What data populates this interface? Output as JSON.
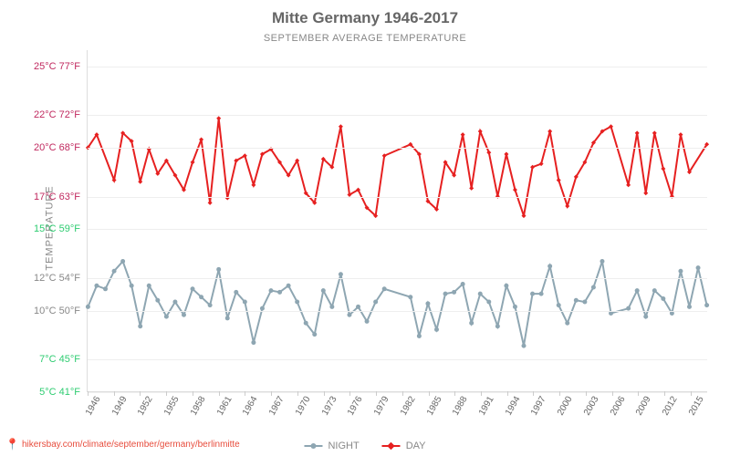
{
  "title": "Mitte Germany 1946-2017",
  "title_fontsize": 17,
  "subtitle": "SEPTEMBER AVERAGE TEMPERATURE",
  "y_axis_label": "TEMPERATURE",
  "plot": {
    "background_color": "#ffffff",
    "grid_color": "#eeeeee",
    "axis_color": "#dddddd",
    "ylim_c": [
      5,
      26
    ],
    "y_ticks": [
      {
        "c": 5,
        "f": 41,
        "color": "#2ecc71"
      },
      {
        "c": 7,
        "f": 45,
        "color": "#2ecc71"
      },
      {
        "c": 10,
        "f": 50,
        "color": "#888888"
      },
      {
        "c": 12,
        "f": 54,
        "color": "#888888"
      },
      {
        "c": 15,
        "f": 59,
        "color": "#2ecc71"
      },
      {
        "c": 17,
        "f": 63,
        "color": "#c0295f"
      },
      {
        "c": 20,
        "f": 68,
        "color": "#c0295f"
      },
      {
        "c": 22,
        "f": 72,
        "color": "#c0295f"
      },
      {
        "c": 25,
        "f": 77,
        "color": "#c0295f"
      }
    ],
    "x_tick_years": [
      1946,
      1949,
      1952,
      1955,
      1958,
      1961,
      1964,
      1967,
      1970,
      1973,
      1976,
      1979,
      1982,
      1985,
      1988,
      1991,
      1994,
      1997,
      2000,
      2003,
      2006,
      2009,
      2012,
      2015
    ],
    "x_range": [
      1946,
      2017
    ]
  },
  "series": {
    "night": {
      "label": "NIGHT",
      "color": "#8ea6b2",
      "line_width": 2,
      "marker_size": 5,
      "years": [
        1946,
        1947,
        1948,
        1949,
        1950,
        1951,
        1952,
        1953,
        1954,
        1955,
        1956,
        1957,
        1958,
        1959,
        1960,
        1961,
        1962,
        1963,
        1964,
        1965,
        1966,
        1967,
        1968,
        1969,
        1970,
        1971,
        1972,
        1973,
        1974,
        1975,
        1976,
        1977,
        1978,
        1979,
        1980,
        1983,
        1984,
        1985,
        1986,
        1987,
        1988,
        1989,
        1990,
        1991,
        1992,
        1993,
        1994,
        1995,
        1996,
        1997,
        1998,
        1999,
        2000,
        2001,
        2002,
        2003,
        2004,
        2005,
        2006,
        2008,
        2009,
        2010,
        2011,
        2012,
        2013,
        2014,
        2015,
        2016,
        2017
      ],
      "values": [
        10.2,
        11.5,
        11.3,
        12.4,
        13.0,
        11.5,
        9.0,
        11.5,
        10.6,
        9.6,
        10.5,
        9.7,
        11.3,
        10.8,
        10.3,
        12.5,
        9.5,
        11.1,
        10.5,
        8.0,
        10.1,
        11.2,
        11.1,
        11.5,
        10.5,
        9.2,
        8.5,
        11.2,
        10.2,
        12.2,
        9.7,
        10.2,
        9.3,
        10.5,
        11.3,
        10.8,
        8.4,
        10.4,
        8.8,
        11.0,
        11.1,
        11.6,
        9.2,
        11.0,
        10.5,
        9.0,
        11.5,
        10.2,
        7.8,
        11.0,
        11.0,
        12.7,
        10.3,
        9.2,
        10.6,
        10.5,
        11.4,
        13.0,
        9.8,
        10.1,
        11.2,
        9.6,
        11.2,
        10.7,
        9.8,
        12.4,
        10.2,
        12.6,
        10.3
      ]
    },
    "day": {
      "label": "DAY",
      "color": "#e62020",
      "line_width": 2,
      "marker_size": 5,
      "marker_shape": "diamond",
      "years": [
        1946,
        1947,
        1949,
        1950,
        1951,
        1952,
        1953,
        1954,
        1955,
        1956,
        1957,
        1958,
        1959,
        1960,
        1961,
        1962,
        1963,
        1964,
        1965,
        1966,
        1967,
        1968,
        1969,
        1970,
        1971,
        1972,
        1973,
        1974,
        1975,
        1976,
        1977,
        1978,
        1979,
        1980,
        1983,
        1984,
        1985,
        1986,
        1987,
        1988,
        1989,
        1990,
        1991,
        1992,
        1993,
        1994,
        1995,
        1996,
        1997,
        1998,
        1999,
        2000,
        2001,
        2002,
        2003,
        2004,
        2005,
        2006,
        2008,
        2009,
        2010,
        2011,
        2012,
        2013,
        2014,
        2015,
        2017
      ],
      "values": [
        20.0,
        20.8,
        18.0,
        20.9,
        20.4,
        17.9,
        19.9,
        18.4,
        19.2,
        18.3,
        17.4,
        19.1,
        20.5,
        16.6,
        21.8,
        16.9,
        19.2,
        19.5,
        17.7,
        19.6,
        19.9,
        19.1,
        18.3,
        19.2,
        17.2,
        16.6,
        19.3,
        18.8,
        21.3,
        17.1,
        17.4,
        16.3,
        15.8,
        19.5,
        20.2,
        19.6,
        16.7,
        16.2,
        19.1,
        18.3,
        20.8,
        17.5,
        21.0,
        19.7,
        17.0,
        19.6,
        17.4,
        15.8,
        18.8,
        19.0,
        21.0,
        18.0,
        16.4,
        18.2,
        19.1,
        20.3,
        21.0,
        21.3,
        17.7,
        20.9,
        17.2,
        20.9,
        18.7,
        17.0,
        20.8,
        18.5,
        20.2
      ]
    }
  },
  "legend": {
    "position": "bottom-center"
  },
  "footer": {
    "pin_color": "#e74c3c",
    "link_text": "hikersbay.com/climate/september/germany/berlinmitte",
    "link_color": "#e74c3c"
  }
}
